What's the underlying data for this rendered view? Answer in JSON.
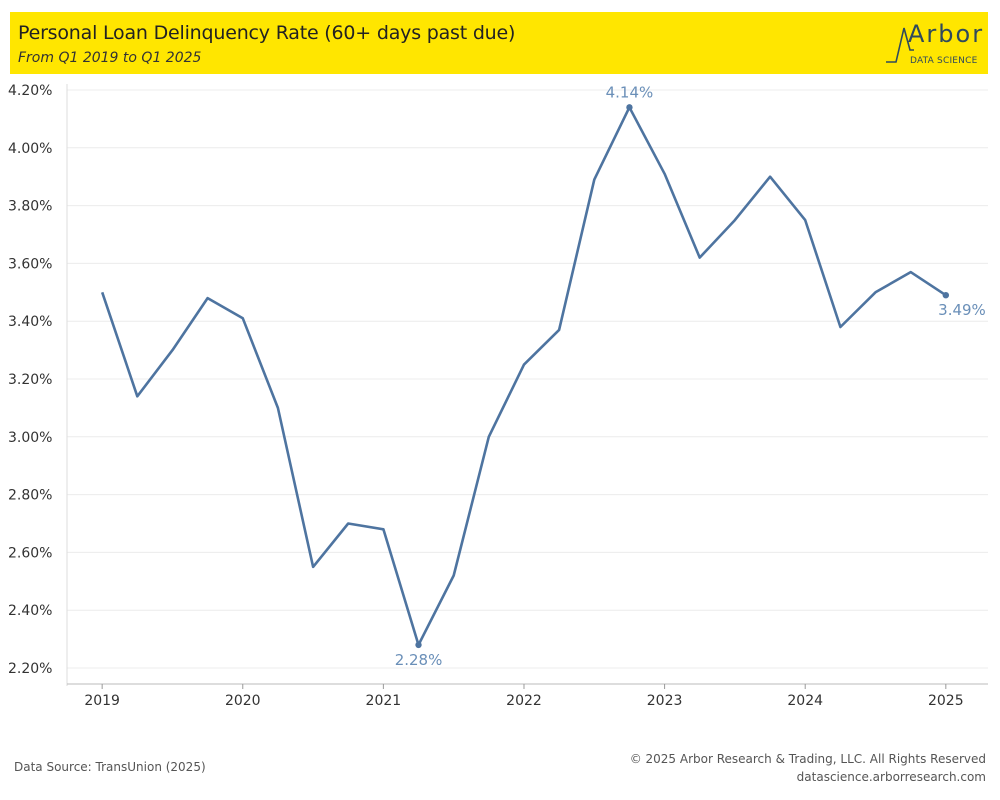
{
  "header": {
    "title": "Personal Loan Delinquency Rate (60+ days past due)",
    "subtitle": "From Q1 2019 to Q1 2025",
    "logo_word": "Arbor",
    "logo_sub": "DATA SCIENCE"
  },
  "footer": {
    "source": "Data Source: TransUnion (2025)",
    "copyright": "© 2025 Arbor Research & Trading, LLC. All Rights Reserved",
    "website": "datascience.arborresearch.com"
  },
  "colors": {
    "header_bg": "#ffe600",
    "line": "#4e74a0",
    "label": "#6a8fb8"
  },
  "chart_data": {
    "type": "line",
    "title": "Personal Loan Delinquency Rate (60+ days past due)",
    "subtitle": "From Q1 2019 to Q1 2025",
    "xlabel": "",
    "ylabel": "",
    "ylim": [
      2.2,
      4.2
    ],
    "xlim": [
      2018.75,
      2025.3
    ],
    "y_ticks": [
      2.2,
      2.4,
      2.6,
      2.8,
      3.0,
      3.2,
      3.4,
      3.6,
      3.8,
      4.0,
      4.2
    ],
    "y_tick_labels": [
      "2.20%",
      "2.40%",
      "2.60%",
      "2.80%",
      "3.00%",
      "3.20%",
      "3.40%",
      "3.60%",
      "3.80%",
      "4.00%",
      "4.20%"
    ],
    "x_ticks": [
      2019,
      2020,
      2021,
      2022,
      2023,
      2024,
      2025
    ],
    "x_tick_labels": [
      "2019",
      "2020",
      "2021",
      "2022",
      "2023",
      "2024",
      "2025"
    ],
    "grid": "horizontal",
    "series": [
      {
        "x": [
          2019.0,
          2019.25,
          2019.5,
          2019.75,
          2020.0,
          2020.25,
          2020.5,
          2020.75,
          2021.0,
          2021.25,
          2021.5,
          2021.75,
          2022.0,
          2022.25,
          2022.5,
          2022.75,
          2023.0,
          2023.25,
          2023.5,
          2023.75,
          2024.0,
          2024.25,
          2024.5,
          2024.75,
          2025.0
        ],
        "values": [
          3.5,
          3.14,
          3.3,
          3.48,
          3.41,
          3.1,
          2.55,
          2.7,
          2.68,
          2.28,
          2.52,
          3.0,
          3.25,
          3.37,
          3.89,
          4.14,
          3.91,
          3.62,
          3.75,
          3.9,
          3.75,
          3.38,
          3.5,
          3.57,
          3.49
        ]
      }
    ],
    "annotations": [
      {
        "index": 15,
        "text": "4.14%",
        "position": "above"
      },
      {
        "index": 9,
        "text": "2.28%",
        "position": "below"
      },
      {
        "index": 24,
        "text": "3.49%",
        "position": "below-right"
      }
    ]
  }
}
